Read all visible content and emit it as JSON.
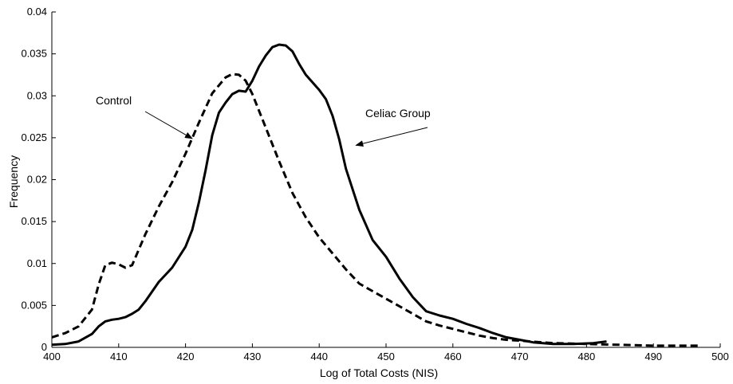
{
  "chart_data": {
    "type": "line",
    "title": "",
    "xlabel": "Log  of Total Costs (NIS)",
    "ylabel": "Frequency",
    "xlim": [
      400,
      500
    ],
    "ylim": [
      0,
      0.04
    ],
    "x_ticks": [
      400,
      410,
      420,
      430,
      440,
      450,
      460,
      470,
      480,
      490,
      500
    ],
    "x_tick_labels": [
      "400",
      "410",
      "420",
      "430",
      "440",
      "450",
      "460",
      "470",
      "480",
      "490",
      "500"
    ],
    "y_ticks": [
      0,
      0.005,
      0.01,
      0.015,
      0.02,
      0.025,
      0.03,
      0.035,
      0.04
    ],
    "y_tick_labels": [
      "0",
      "0.005",
      "0.01",
      "0.015",
      "0.02",
      "0.025",
      "0.03",
      "0.035",
      "0.04"
    ],
    "grid": false,
    "legend": "none",
    "series": [
      {
        "name": "Control",
        "style": "dashed",
        "color": "#000000",
        "x": [
          400,
          402,
          404,
          406,
          407,
          408,
          409,
          410,
          411,
          412,
          414,
          416,
          418,
          420,
          422,
          424,
          426,
          427,
          428,
          429,
          430,
          432,
          434,
          436,
          438,
          440,
          442,
          444,
          446,
          448,
          450,
          452,
          454,
          456,
          458,
          460,
          462,
          464,
          466,
          468,
          470,
          475,
          480,
          485,
          490,
          495,
          497
        ],
        "y": [
          0.0012,
          0.0017,
          0.0025,
          0.0045,
          0.0075,
          0.0098,
          0.0101,
          0.0099,
          0.0095,
          0.0098,
          0.0135,
          0.0168,
          0.0197,
          0.0231,
          0.0268,
          0.0303,
          0.0322,
          0.0326,
          0.0325,
          0.0318,
          0.0302,
          0.0262,
          0.0222,
          0.0184,
          0.0155,
          0.0131,
          0.0112,
          0.0093,
          0.0076,
          0.0067,
          0.0058,
          0.0049,
          0.004,
          0.0031,
          0.0026,
          0.0022,
          0.0018,
          0.0014,
          0.0011,
          0.0009,
          0.0008,
          0.0005,
          0.0004,
          0.0003,
          0.0002,
          0.0002,
          0.0002
        ]
      },
      {
        "name": "Celiac Group",
        "style": "solid",
        "color": "#000000",
        "x": [
          400,
          402,
          404,
          406,
          407,
          408,
          409,
          410,
          411,
          412,
          413,
          414,
          416,
          418,
          420,
          421,
          422,
          423,
          424,
          425,
          426,
          427,
          428,
          429,
          430,
          431,
          432,
          433,
          434,
          435,
          436,
          437,
          438,
          439,
          440,
          441,
          442,
          443,
          444,
          446,
          448,
          450,
          452,
          454,
          456,
          458,
          460,
          462,
          464,
          466,
          468,
          470,
          472,
          475,
          478,
          481,
          483
        ],
        "y": [
          0.0003,
          0.0004,
          0.0007,
          0.0016,
          0.0025,
          0.0031,
          0.0033,
          0.0034,
          0.0036,
          0.004,
          0.0045,
          0.0055,
          0.0078,
          0.0095,
          0.012,
          0.014,
          0.0173,
          0.0211,
          0.0253,
          0.028,
          0.0292,
          0.0302,
          0.0306,
          0.0305,
          0.0318,
          0.0335,
          0.0348,
          0.0358,
          0.0361,
          0.036,
          0.0353,
          0.0338,
          0.0325,
          0.0316,
          0.0307,
          0.0296,
          0.0276,
          0.0248,
          0.0213,
          0.0164,
          0.0128,
          0.0108,
          0.0082,
          0.006,
          0.0043,
          0.0038,
          0.0034,
          0.0028,
          0.0023,
          0.0017,
          0.0012,
          0.0009,
          0.0006,
          0.0004,
          0.0004,
          0.0005,
          0.0007
        ]
      }
    ],
    "annotations": [
      {
        "text": "Control",
        "arrow_target": {
          "x": 421,
          "y": 0.0249
        }
      },
      {
        "text": "Celiac Group",
        "arrow_target": {
          "x": 445.5,
          "y": 0.0241
        }
      }
    ]
  }
}
